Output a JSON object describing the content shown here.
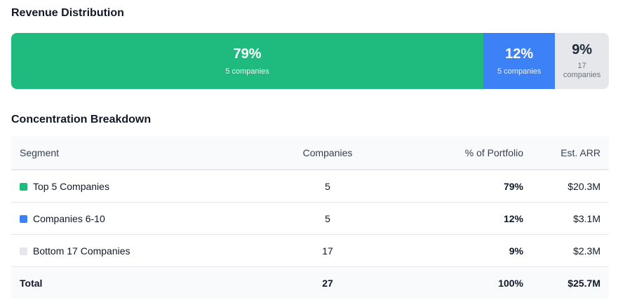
{
  "sections": {
    "distribution_title": "Revenue Distribution",
    "breakdown_title": "Concentration Breakdown"
  },
  "chart_data": {
    "type": "bar",
    "orientation": "stacked-horizontal",
    "title": "Revenue Distribution",
    "categories": [
      "Top 5 Companies",
      "Companies 6-10",
      "Bottom 17 Companies"
    ],
    "values": [
      79,
      12,
      9
    ],
    "segments": [
      {
        "percent": 79,
        "pct_label": "79%",
        "sub_label": "5 companies",
        "color": "#1fba7e"
      },
      {
        "percent": 12,
        "pct_label": "12%",
        "sub_label": "5 companies",
        "color": "#3c82f6"
      },
      {
        "percent": 9,
        "pct_label": "9%",
        "sub_label": "17 companies",
        "color": "#e5e7eb"
      }
    ]
  },
  "table": {
    "headers": {
      "segment": "Segment",
      "companies": "Companies",
      "portfolio": "% of Portfolio",
      "arr": "Est. ARR"
    },
    "rows": [
      {
        "segment": "Top 5 Companies",
        "companies": "5",
        "portfolio": "79%",
        "arr": "$20.3M",
        "color": "#1fba7e"
      },
      {
        "segment": "Companies 6-10",
        "companies": "5",
        "portfolio": "12%",
        "arr": "$3.1M",
        "color": "#3c82f6"
      },
      {
        "segment": "Bottom 17 Companies",
        "companies": "17",
        "portfolio": "9%",
        "arr": "$2.3M",
        "color": "#e5e7eb"
      }
    ],
    "total": {
      "label": "Total",
      "companies": "27",
      "portfolio": "100%",
      "arr": "$25.7M"
    }
  }
}
